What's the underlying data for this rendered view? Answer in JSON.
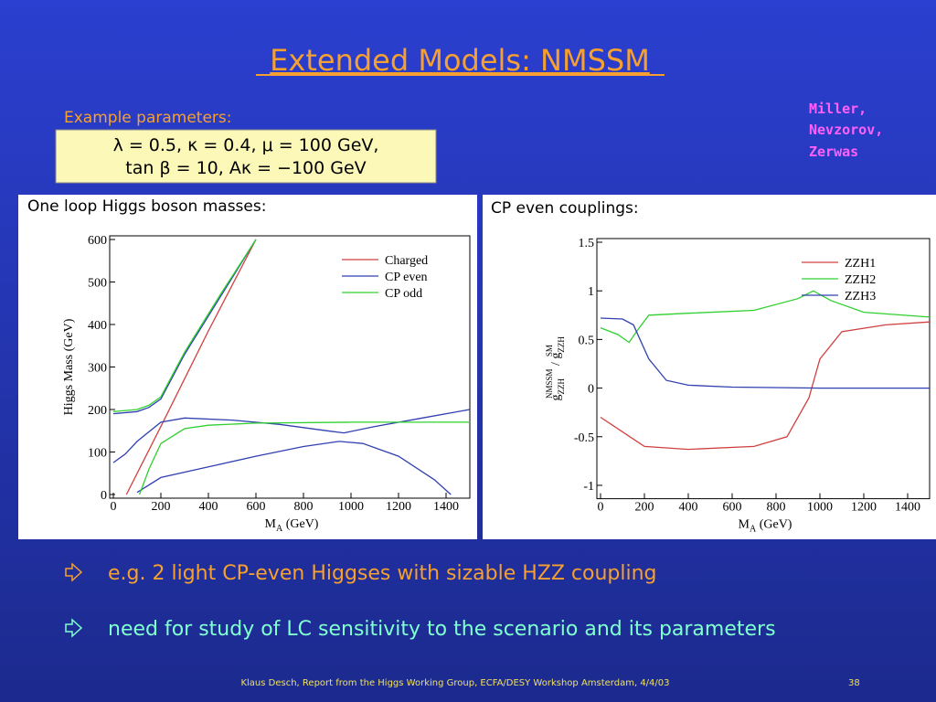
{
  "title": "Extended Models: NMSSM",
  "authors": [
    "Miller,",
    "Nevzorov,",
    "Zerwas"
  ],
  "parameters": {
    "label": "Example parameters:",
    "lines": [
      "λ = 0.5, κ = 0.4, μ = 100 GeV,",
      "tan β = 10, Aκ = −100 GeV"
    ]
  },
  "chart_data": [
    {
      "type": "line",
      "title": "One loop Higgs boson masses:",
      "xlabel": [
        "M",
        "A",
        " (GeV)"
      ],
      "ylabel": "Higgs Mass (GeV)",
      "xlim": [
        0,
        1500
      ],
      "ylim": [
        0,
        600
      ],
      "xticks": [
        0,
        200,
        400,
        600,
        800,
        1000,
        1200,
        1400
      ],
      "yticks": [
        0,
        100,
        200,
        300,
        400,
        500,
        600
      ],
      "legend": "upper right",
      "series": [
        {
          "name": "Charged",
          "color": "#d04040",
          "x": [
            55,
            200,
            400,
            600
          ],
          "values": [
            0,
            160,
            385,
            600
          ]
        },
        {
          "name": "CP even",
          "color": "#3040b0",
          "x": [
            0,
            100,
            150,
            200,
            300,
            450,
            600,
            null,
            0,
            50,
            100,
            200,
            300,
            500,
            700,
            900,
            970,
            1100,
            1300,
            1500,
            null,
            100,
            200,
            400,
            600,
            800,
            950,
            1050,
            1200,
            1350,
            1420
          ],
          "values": [
            190,
            195,
            205,
            225,
            330,
            465,
            600,
            null,
            75,
            95,
            125,
            170,
            180,
            175,
            165,
            150,
            145,
            160,
            180,
            200,
            null,
            5,
            40,
            65,
            90,
            113,
            125,
            120,
            90,
            35,
            0
          ]
        },
        {
          "name": "CP odd",
          "color": "#30d030",
          "x": [
            0,
            100,
            150,
            200,
            300,
            450,
            600,
            null,
            110,
            150,
            200,
            300,
            400,
            600,
            1000,
            1500
          ],
          "values": [
            195,
            200,
            210,
            230,
            335,
            470,
            600,
            null,
            0,
            60,
            120,
            155,
            163,
            168,
            170,
            170
          ]
        }
      ]
    },
    {
      "type": "line",
      "title": "CP even couplings:",
      "xlabel": [
        "M",
        "A",
        " (GeV)"
      ],
      "ylabel": [
        "g",
        "ZZH",
        "NMSSM",
        " / g",
        "ZZH",
        "SM"
      ],
      "xlim": [
        0,
        1500
      ],
      "ylim": [
        -1.1,
        1.5
      ],
      "xticks": [
        0,
        200,
        400,
        600,
        800,
        1000,
        1200,
        1400
      ],
      "yticks": [
        -1,
        -0.5,
        0,
        0.5,
        1,
        1.5
      ],
      "legend": "upper right",
      "series": [
        {
          "name": "ZZH1",
          "color": "#d04040",
          "x": [
            0,
            100,
            200,
            400,
            700,
            850,
            950,
            1000,
            1100,
            1300,
            1500
          ],
          "values": [
            -0.3,
            -0.45,
            -0.6,
            -0.63,
            -0.6,
            -0.5,
            -0.1,
            0.3,
            0.58,
            0.65,
            0.68
          ]
        },
        {
          "name": "ZZH2",
          "color": "#30d030",
          "x": [
            0,
            80,
            130,
            170,
            220,
            400,
            700,
            900,
            970,
            1050,
            1200,
            1500
          ],
          "values": [
            0.62,
            0.55,
            0.47,
            0.6,
            0.75,
            0.77,
            0.8,
            0.92,
            1.0,
            0.9,
            0.78,
            0.73
          ]
        },
        {
          "name": "ZZH3",
          "color": "#3040b0",
          "x": [
            0,
            100,
            150,
            220,
            300,
            400,
            600,
            1000,
            1500
          ],
          "values": [
            0.72,
            0.71,
            0.65,
            0.3,
            0.08,
            0.03,
            0.01,
            0,
            0
          ]
        }
      ]
    }
  ],
  "bullets": [
    "e.g. 2 light CP-even Higgses with sizable HZZ coupling",
    "need for study of LC sensitivity to the scenario and its parameters"
  ],
  "footer": {
    "text": "Klaus Desch, Report from the Higgs Working Group, ECFA/DESY Workshop Amsterdam, 4/4/03",
    "page": "38"
  }
}
